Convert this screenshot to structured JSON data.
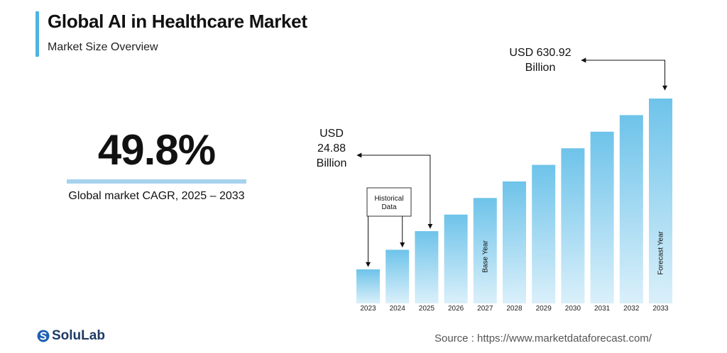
{
  "header": {
    "title": "Global AI in Healthcare Market",
    "subtitle": "Market Size Overview"
  },
  "highlight": {
    "cagr_value": "49.8%",
    "cagr_label": "Global market CAGR, 2025 – 2033"
  },
  "chart_data": {
    "type": "bar",
    "categories": [
      "2023",
      "2024",
      "2025",
      "2026",
      "2027",
      "2028",
      "2029",
      "2030",
      "2031",
      "2032",
      "2033"
    ],
    "values": [
      9.8,
      15.8,
      24.88,
      37.3,
      55.8,
      83.6,
      125.2,
      187.5,
      280.9,
      420.8,
      630.92
    ],
    "scale": "log",
    "annotations": {
      "start_label": [
        "USD",
        "24.88",
        "Billion"
      ],
      "end_label": [
        "USD 630.92",
        "Billion"
      ],
      "historical_label": [
        "Historical",
        "Data"
      ],
      "base_year_label": "Base Year",
      "forecast_year_label": "Forecast Year"
    },
    "bar_color": "#6ec3ea"
  },
  "footer": {
    "brand": "SoluLab",
    "source": "Source :  https://www.marketdataforecast.com/"
  }
}
